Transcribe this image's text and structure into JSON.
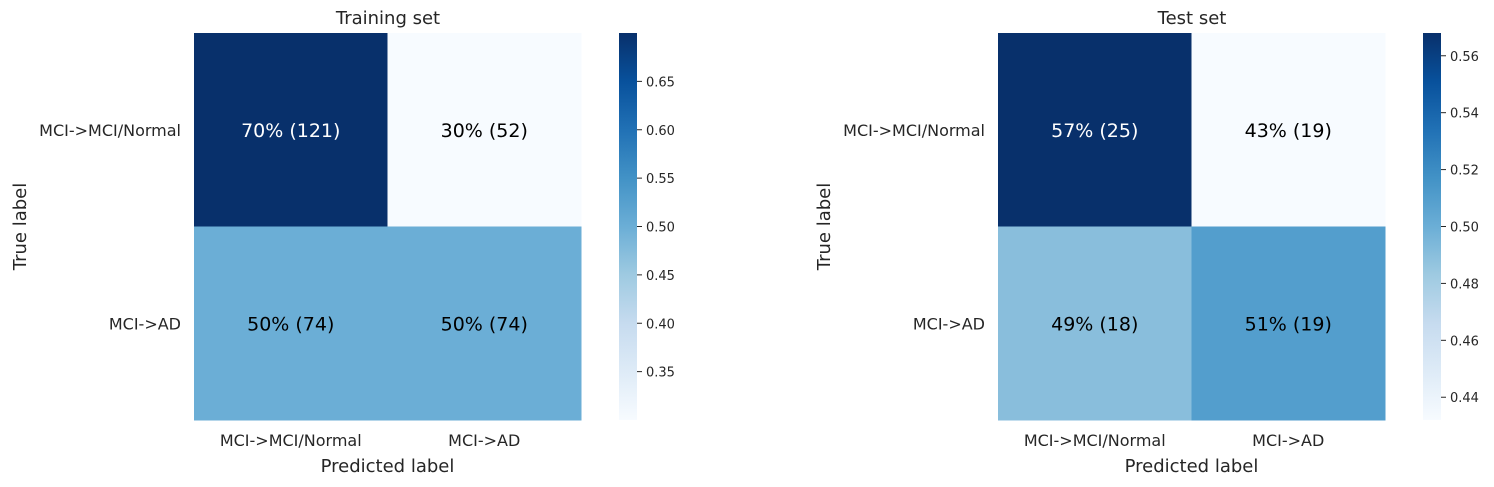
{
  "chart_data": [
    {
      "type": "heatmap",
      "title": "Training set",
      "xlabel": "Predicted label",
      "ylabel": "True label",
      "x_categories": [
        "MCI->MCI/Normal",
        "MCI->AD"
      ],
      "y_categories": [
        "MCI->MCI/Normal",
        "MCI->AD"
      ],
      "values": [
        [
          0.7,
          0.3
        ],
        [
          0.5,
          0.5
        ]
      ],
      "annotations": [
        [
          "70%  (121)",
          "30%  (52)"
        ],
        [
          "50%  (74)",
          "50%  (74)"
        ]
      ],
      "colorbar": {
        "min": 0.3,
        "max": 0.7,
        "ticks": [
          0.35,
          0.4,
          0.45,
          0.5,
          0.55,
          0.6,
          0.65
        ],
        "tick_labels": [
          "0.35",
          "0.40",
          "0.45",
          "0.50",
          "0.55",
          "0.60",
          "0.65"
        ]
      },
      "colormap": "Blues"
    },
    {
      "type": "heatmap",
      "title": "Test set",
      "xlabel": "Predicted label",
      "ylabel": "True label",
      "x_categories": [
        "MCI->MCI/Normal",
        "MCI->AD"
      ],
      "y_categories": [
        "MCI->MCI/Normal",
        "MCI->AD"
      ],
      "values": [
        [
          0.57,
          0.43
        ],
        [
          0.49,
          0.51
        ]
      ],
      "annotations": [
        [
          "57%  (25)",
          "43%  (19)"
        ],
        [
          "49%  (18)",
          "51%  (19)"
        ]
      ],
      "colorbar": {
        "min": 0.432,
        "max": 0.568,
        "ticks": [
          0.44,
          0.46,
          0.48,
          0.5,
          0.52,
          0.54,
          0.56
        ],
        "tick_labels": [
          "0.44",
          "0.46",
          "0.48",
          "0.50",
          "0.52",
          "0.54",
          "0.56"
        ]
      },
      "colormap": "Blues"
    }
  ]
}
